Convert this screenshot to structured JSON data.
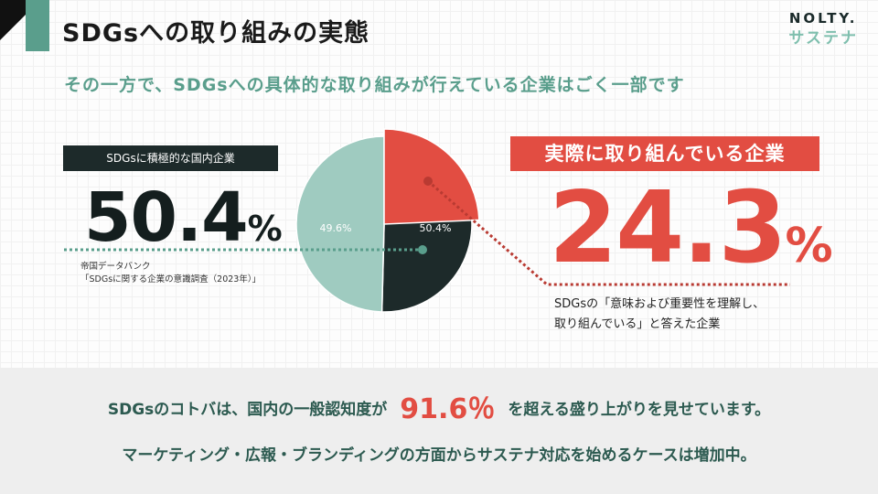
{
  "header": {
    "title": "SDGsへの取り組みの実態",
    "subtitle": "その一方で、SDGsへの具体的な取り組みが行えている企業はごく一部です"
  },
  "logo": {
    "top": "NOLTY.",
    "bottom": "サステナ"
  },
  "left_panel": {
    "label": "SDGsに積極的な国内企業",
    "percent_value": "50.4",
    "percent_sign": "%",
    "source_line1": "帝国データバンク",
    "source_line2": "「SDGsに関する企業の意識調査（2023年）」"
  },
  "right_panel": {
    "label": "実際に取り組んでいる企業",
    "percent_value": "24.3",
    "percent_sign": "%",
    "note_line1": "SDGsの「意味および重要性を理解し、",
    "note_line2": "取り組んでいる」と答えた企業"
  },
  "bottom": {
    "line1_before": "SDGsのコトバは、国内の一般認知度が",
    "line1_highlight": "91.6％",
    "line1_after": "を超える盛り上がりを見せています。",
    "line2": "マーケティング・広報・ブランディングの方面からサステナ対応を始めるケースは増加中。"
  },
  "colors": {
    "accent_red": "#e24d42",
    "dark": "#1d2a2a",
    "teal": "#5a9e8c",
    "light_teal": "#9fcbc0"
  },
  "chart_data": {
    "type": "pie",
    "slices": [
      {
        "label": "50.4%",
        "value": 50.4,
        "color": "#1d2a2a"
      },
      {
        "label": "49.6%",
        "value": 49.6,
        "color": "#9fcbc0"
      }
    ],
    "highlight_subslice": {
      "value": 24.3,
      "color": "#e24d42"
    }
  }
}
